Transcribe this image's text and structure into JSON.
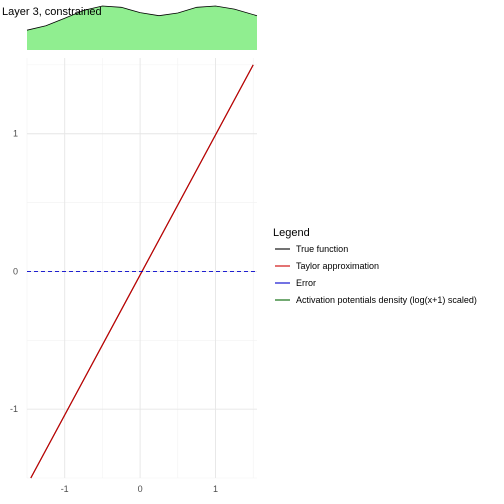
{
  "chart_data": {
    "type": "line",
    "title": "Layer 3, constrained",
    "xlabel": "",
    "ylabel": "",
    "xlim": [
      -1.5,
      1.55
    ],
    "ylim": [
      -1.5,
      1.55
    ],
    "x_ticks": [
      -1,
      0,
      1
    ],
    "x_tick_labels": [
      "-1",
      "0",
      "1"
    ],
    "y_ticks": [
      -1,
      0,
      1
    ],
    "y_tick_labels": [
      "-1",
      "0",
      "1"
    ],
    "grid": true,
    "legend": {
      "title": "Legend",
      "position": "right",
      "entries": [
        {
          "label": "True function",
          "color": "#000000"
        },
        {
          "label": "Taylor approximation",
          "color": "#cc0000"
        },
        {
          "label": "Error",
          "color": "#0000cc"
        },
        {
          "label": "Activation potentials density (log(x+1) scaled)",
          "color": "#006400"
        }
      ]
    },
    "series": [
      {
        "name": "True function",
        "color": "#000000",
        "style": "solid",
        "x": [
          -1.45,
          1.5
        ],
        "y": [
          -1.5,
          1.5
        ]
      },
      {
        "name": "Taylor approximation",
        "color": "#cc0000",
        "style": "solid",
        "x": [
          -1.45,
          1.5
        ],
        "y": [
          -1.5,
          1.5
        ]
      },
      {
        "name": "Error",
        "color": "#0000cc",
        "style": "dashed",
        "x": [
          -1.5,
          1.55
        ],
        "y": [
          0,
          0
        ]
      }
    ],
    "density": {
      "name": "Activation potentials density (log(x+1) scaled)",
      "fill": "#90ee90",
      "line": "#006400",
      "x": [
        -1.5,
        -1.25,
        -1.0,
        -0.75,
        -0.5,
        -0.25,
        0.0,
        0.25,
        0.5,
        0.75,
        1.0,
        1.25,
        1.55
      ],
      "y": [
        0.45,
        0.55,
        0.72,
        0.9,
        1.0,
        0.97,
        0.85,
        0.78,
        0.84,
        0.97,
        1.0,
        0.93,
        0.78
      ]
    }
  }
}
